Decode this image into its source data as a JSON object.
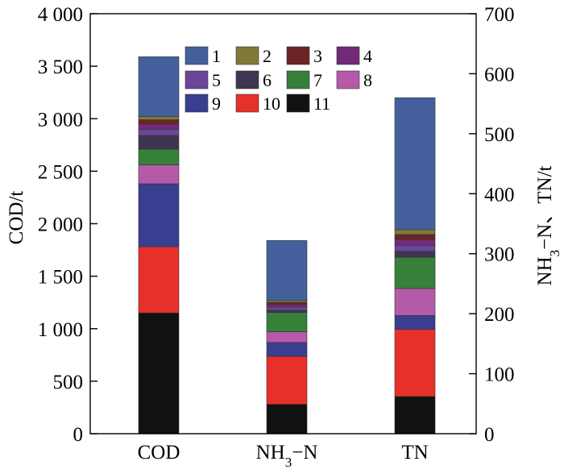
{
  "chart_data": {
    "type": "bar",
    "stacked": true,
    "categories": [
      "COD",
      "NH3-N",
      "TN"
    ],
    "category_labels": [
      {
        "main": "COD",
        "sub": "",
        "tail": ""
      },
      {
        "main": "NH",
        "sub": "3",
        "tail": "−N"
      },
      {
        "main": "TN",
        "sub": "",
        "tail": ""
      }
    ],
    "axis_for_category": [
      "left",
      "right",
      "right"
    ],
    "y_left": {
      "label": "COD/t",
      "lim": [
        0,
        4000
      ],
      "ticks": [
        0,
        500,
        1000,
        1500,
        2000,
        2500,
        3000,
        3500,
        4000
      ],
      "tick_labels": [
        "0",
        "500",
        "1 000",
        "1 500",
        "2 000",
        "2 500",
        "3 000",
        "3 500",
        "4 000"
      ]
    },
    "y_right": {
      "label_parts": {
        "main": "NH",
        "sub": "3",
        "tail": "−N、TN/t"
      },
      "lim": [
        0,
        700
      ],
      "ticks": [
        0,
        100,
        200,
        300,
        400,
        500,
        600,
        700
      ],
      "tick_labels": [
        "0",
        "100",
        "200",
        "300",
        "400",
        "500",
        "600",
        "700"
      ]
    },
    "stack_order_bottom_to_top": [
      "11",
      "10",
      "9",
      "8",
      "7",
      "6",
      "5",
      "4",
      "3",
      "2",
      "1"
    ],
    "series": [
      {
        "name": "1",
        "color": "#44609c",
        "values": [
          570,
          100,
          220
        ]
      },
      {
        "name": "2",
        "color": "#7f7a3a",
        "values": [
          30,
          3,
          8
        ]
      },
      {
        "name": "3",
        "color": "#6b2424",
        "values": [
          40,
          4,
          8
        ]
      },
      {
        "name": "4",
        "color": "#722a78",
        "values": [
          50,
          4,
          10
        ]
      },
      {
        "name": "5",
        "color": "#6a4699",
        "values": [
          60,
          5,
          10
        ]
      },
      {
        "name": "6",
        "color": "#403550",
        "values": [
          130,
          4,
          10
        ]
      },
      {
        "name": "7",
        "color": "#36803a",
        "values": [
          150,
          32,
          52
        ]
      },
      {
        "name": "8",
        "color": "#b55aa8",
        "values": [
          180,
          18,
          45
        ]
      },
      {
        "name": "9",
        "color": "#393e90",
        "values": [
          600,
          23,
          23
        ]
      },
      {
        "name": "10",
        "color": "#e8302a",
        "values": [
          630,
          80,
          112
        ]
      },
      {
        "name": "11",
        "color": "#111111",
        "values": [
          1150,
          49,
          62
        ]
      }
    ],
    "legend": {
      "placement": "top-center",
      "columns": 4
    },
    "grid": false
  }
}
